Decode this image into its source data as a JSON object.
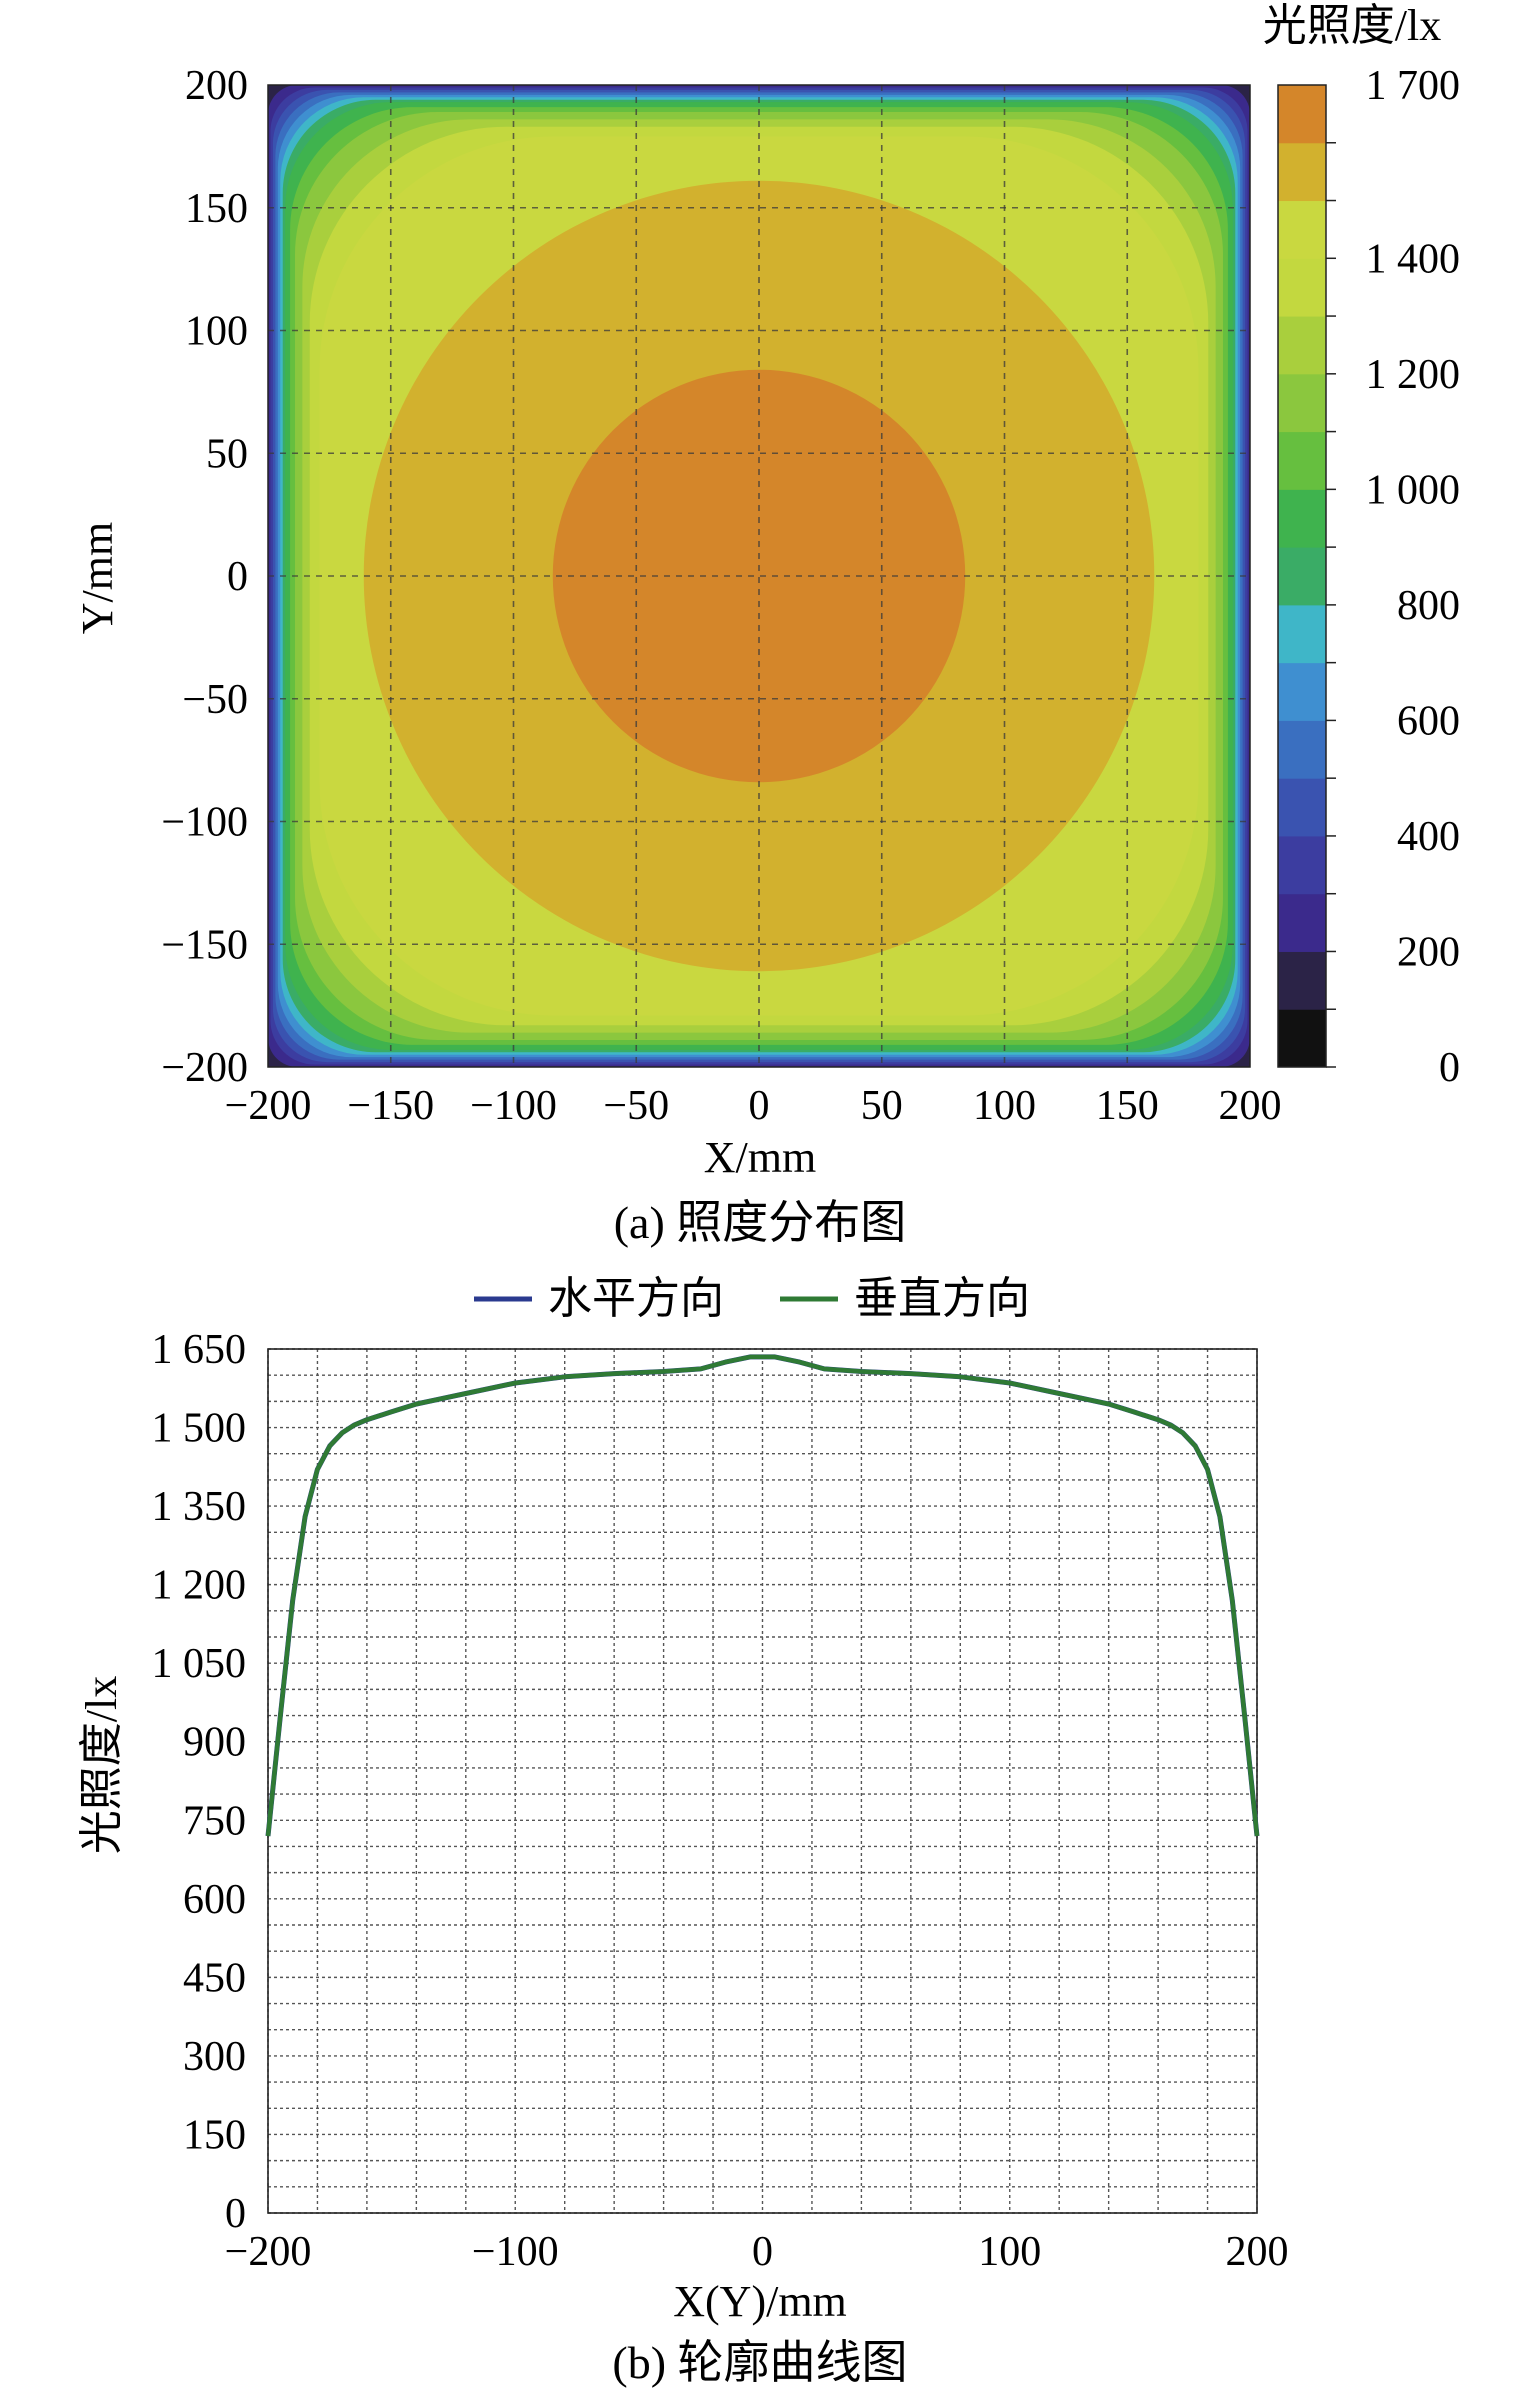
{
  "chart_data": [
    {
      "type": "heatmap",
      "caption": "(a) 照度分布图",
      "xlabel": "X/mm",
      "ylabel": "Y/mm",
      "colorbar_label": "光照度/lx",
      "xlim": [
        -200,
        200
      ],
      "ylim": [
        -200,
        200
      ],
      "xticks": [
        -200,
        -150,
        -100,
        -50,
        0,
        50,
        100,
        150,
        200
      ],
      "yticks": [
        -200,
        -150,
        -100,
        -50,
        0,
        50,
        100,
        150,
        200
      ],
      "xtick_labels": [
        "−200",
        "−150",
        "−100",
        "−50",
        "0",
        "50",
        "100",
        "150",
        "200"
      ],
      "ytick_labels": [
        "−200",
        "−150",
        "−100",
        "−50",
        "0",
        "50",
        "100",
        "150",
        "200"
      ],
      "colorbar_range": [
        0,
        1700
      ],
      "colorbar_ticks": [
        0,
        200,
        400,
        600,
        800,
        1000,
        1200,
        1400,
        1700
      ],
      "colorbar_tick_labels": [
        "0",
        "200",
        "400",
        "600",
        "800",
        "1 000",
        "1 200",
        "1 400",
        "1 700"
      ],
      "grid": true,
      "contour_levels": [
        {
          "min": 0,
          "max": 100,
          "color": "#111111"
        },
        {
          "min": 100,
          "max": 200,
          "color": "#2b2347"
        },
        {
          "min": 200,
          "max": 300,
          "color": "#3b2a8c"
        },
        {
          "min": 300,
          "max": 400,
          "color": "#3c3da0"
        },
        {
          "min": 400,
          "max": 500,
          "color": "#3a53b0"
        },
        {
          "min": 500,
          "max": 600,
          "color": "#3a6fc0"
        },
        {
          "min": 600,
          "max": 700,
          "color": "#3f8fd0"
        },
        {
          "min": 700,
          "max": 800,
          "color": "#3fb6c8"
        },
        {
          "min": 800,
          "max": 900,
          "color": "#3aac66"
        },
        {
          "min": 900,
          "max": 1000,
          "color": "#3fb34e"
        },
        {
          "min": 1000,
          "max": 1100,
          "color": "#66bf3f"
        },
        {
          "min": 1100,
          "max": 1200,
          "color": "#8bc73e"
        },
        {
          "min": 1200,
          "max": 1300,
          "color": "#a9cf3d"
        },
        {
          "min": 1300,
          "max": 1400,
          "color": "#c3d83f"
        },
        {
          "min": 1400,
          "max": 1500,
          "color": "#c9d840"
        },
        {
          "min": 1500,
          "max": 1600,
          "color": "#d2b12e"
        },
        {
          "min": 1600,
          "max": 1700,
          "color": "#d4862a"
        }
      ],
      "regions": [
        {
          "level": 1600,
          "shape": "circle",
          "radius": 84
        },
        {
          "level": 1500,
          "shape": "circle",
          "radius": 161
        },
        {
          "level": 1400,
          "shape": "rounded-square",
          "half_width": 179,
          "corner_radius": 95
        },
        {
          "level": 1300,
          "shape": "rounded-square",
          "half_width": 183,
          "corner_radius": 80
        },
        {
          "level": 1200,
          "shape": "rounded-square",
          "half_width": 186,
          "corner_radius": 68
        },
        {
          "level": 1100,
          "shape": "rounded-square",
          "half_width": 189,
          "corner_radius": 58
        },
        {
          "level": 1000,
          "shape": "rounded-square",
          "half_width": 191,
          "corner_radius": 50
        },
        {
          "level": 900,
          "shape": "rounded-square",
          "half_width": 193,
          "corner_radius": 43
        },
        {
          "level": 800,
          "shape": "rounded-square",
          "half_width": 194,
          "corner_radius": 38
        },
        {
          "level": 700,
          "shape": "rounded-square",
          "half_width": 195,
          "corner_radius": 34
        },
        {
          "level": 600,
          "shape": "rounded-square",
          "half_width": 196,
          "corner_radius": 30
        },
        {
          "level": 500,
          "shape": "rounded-square",
          "half_width": 197,
          "corner_radius": 26
        },
        {
          "level": 400,
          "shape": "rounded-square",
          "half_width": 198,
          "corner_radius": 22
        },
        {
          "level": 300,
          "shape": "rounded-square",
          "half_width": 199,
          "corner_radius": 18
        },
        {
          "level": 200,
          "shape": "rounded-square",
          "half_width": 200,
          "corner_radius": 12
        },
        {
          "level": 100,
          "shape": "square",
          "half_width": 200
        }
      ]
    },
    {
      "type": "line",
      "caption": "(b) 轮廓曲线图",
      "xlabel": "X(Y)/mm",
      "ylabel": "光照度/lx",
      "xlim": [
        -200,
        200
      ],
      "ylim": [
        0,
        1650
      ],
      "xticks": [
        -200,
        -100,
        0,
        100,
        200
      ],
      "xtick_labels": [
        "−200",
        "−100",
        "0",
        "100",
        "200"
      ],
      "yticks": [
        0,
        150,
        300,
        450,
        600,
        750,
        900,
        1050,
        1200,
        1350,
        1500,
        1650
      ],
      "ytick_labels": [
        "0",
        "150",
        "300",
        "450",
        "600",
        "750",
        "900",
        "1 050",
        "1 200",
        "1 350",
        "1 500",
        "1 650"
      ],
      "grid": true,
      "legend_position": "top",
      "series": [
        {
          "name": "水平方向",
          "color": "#2a3a8f",
          "x": [
            -200,
            -195,
            -190,
            -185,
            -180,
            -175,
            -170,
            -165,
            -160,
            -150,
            -140,
            -120,
            -100,
            -80,
            -60,
            -40,
            -25,
            -15,
            -5,
            0,
            5,
            15,
            25,
            40,
            60,
            80,
            100,
            120,
            140,
            150,
            160,
            165,
            170,
            175,
            180,
            185,
            190,
            195,
            200
          ],
          "values": [
            720,
            950,
            1170,
            1330,
            1420,
            1465,
            1490,
            1505,
            1515,
            1530,
            1545,
            1565,
            1585,
            1597,
            1603,
            1607,
            1612,
            1625,
            1635,
            1635,
            1635,
            1625,
            1612,
            1607,
            1603,
            1597,
            1585,
            1565,
            1545,
            1530,
            1515,
            1505,
            1490,
            1465,
            1420,
            1330,
            1170,
            950,
            720
          ]
        },
        {
          "name": "垂直方向",
          "color": "#2f7a34",
          "x": [
            -200,
            -195,
            -190,
            -185,
            -180,
            -175,
            -170,
            -165,
            -160,
            -150,
            -140,
            -120,
            -100,
            -80,
            -60,
            -40,
            -25,
            -15,
            -5,
            0,
            5,
            15,
            25,
            40,
            60,
            80,
            100,
            120,
            140,
            150,
            160,
            165,
            170,
            175,
            180,
            185,
            190,
            195,
            200
          ],
          "values": [
            720,
            950,
            1170,
            1330,
            1420,
            1465,
            1490,
            1505,
            1515,
            1530,
            1545,
            1565,
            1585,
            1597,
            1603,
            1607,
            1612,
            1625,
            1635,
            1635,
            1635,
            1625,
            1612,
            1607,
            1603,
            1597,
            1585,
            1565,
            1545,
            1530,
            1515,
            1505,
            1490,
            1465,
            1420,
            1330,
            1170,
            950,
            720
          ]
        }
      ]
    }
  ]
}
